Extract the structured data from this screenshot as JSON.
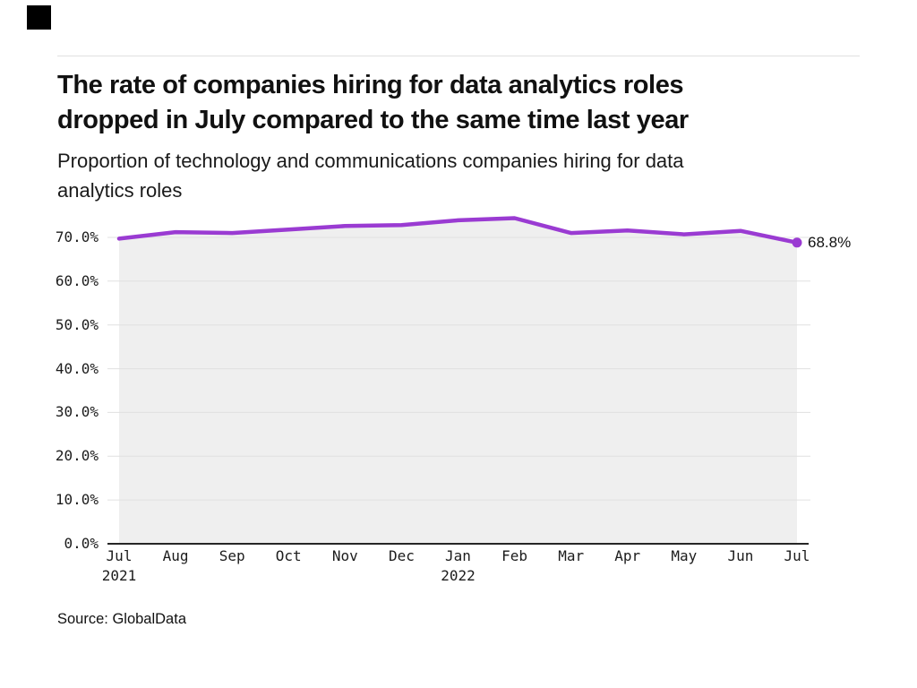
{
  "brand": {
    "square_color": "#000000"
  },
  "header": {
    "title_line1": "The rate of companies hiring for data analytics roles",
    "title_line2": "dropped in July compared to the same time last year",
    "subtitle_line1": "Proportion of technology and communications companies hiring for data",
    "subtitle_line2": "analytics roles"
  },
  "chart_data": {
    "type": "area",
    "title": "The rate of companies hiring for data analytics roles dropped in July compared to the same time last year",
    "subtitle": "Proportion of technology and communications companies hiring for data analytics roles",
    "x": [
      "Jul 2021",
      "Aug 2021",
      "Sep 2021",
      "Oct 2021",
      "Nov 2021",
      "Dec 2021",
      "Jan 2022",
      "Feb 2022",
      "Mar 2022",
      "Apr 2022",
      "May 2022",
      "Jun 2022",
      "Jul 2022"
    ],
    "values": [
      69.7,
      71.2,
      71.0,
      71.8,
      72.6,
      72.8,
      73.9,
      74.4,
      71.0,
      71.6,
      70.7,
      71.5,
      68.8
    ],
    "end_label": "68.8%",
    "ylim": [
      0,
      77
    ],
    "grid": "horizontal",
    "legend": "none",
    "y_ticks": [
      {
        "label": "70.0%",
        "value": 70
      },
      {
        "label": "60.0%",
        "value": 60
      },
      {
        "label": "50.0%",
        "value": 50
      },
      {
        "label": "40.0%",
        "value": 40
      },
      {
        "label": "30.0%",
        "value": 30
      },
      {
        "label": "20.0%",
        "value": 20
      },
      {
        "label": "10.0%",
        "value": 10
      },
      {
        "label": "0.0%",
        "value": 0
      }
    ],
    "x_tick_labels": [
      "Jul",
      "Aug",
      "Sep",
      "Oct",
      "Nov",
      "Dec",
      "Jan",
      "Feb",
      "Mar",
      "Apr",
      "May",
      "Jun",
      "Jul"
    ],
    "x_year_labels": [
      {
        "label": "2021",
        "index": 0
      },
      {
        "label": "2022",
        "index": 6
      }
    ],
    "line_color": "#9a3bd2",
    "area_fill_color": "#efefef",
    "gridline_color": "#e0e0e0",
    "axis_color": "#262626"
  },
  "footer": {
    "source": "Source: GlobalData"
  }
}
